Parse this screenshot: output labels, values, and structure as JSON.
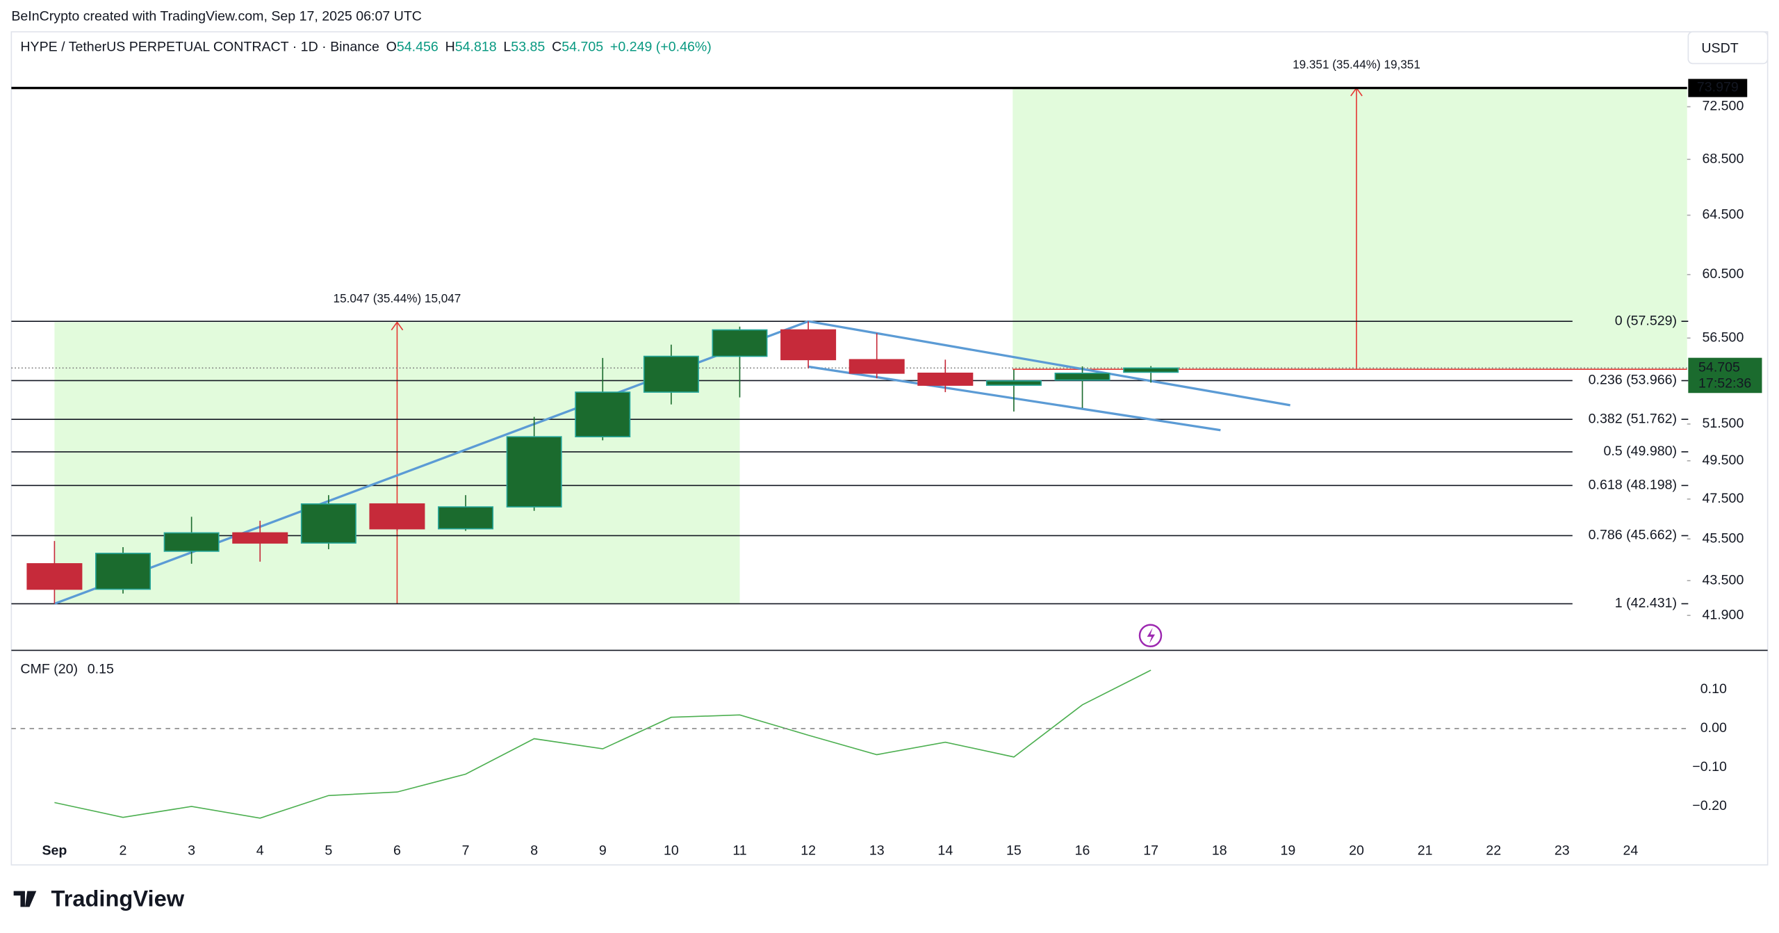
{
  "header": {
    "attribution": "BeInCrypto created with TradingView.com, Sep 17, 2025 06:07 UTC",
    "logo": "TradingView"
  },
  "chart_data": [
    {
      "type": "candlestick",
      "title": "HYPE / TetherUS PERPETUAL CONTRACT · 1D · Binance",
      "ohlc_prefixes": [
        "O",
        "H",
        "L",
        "C"
      ],
      "change": "+0.249 (+0.46%)",
      "currency": "USDT",
      "categories": [
        "Sep",
        "2",
        "3",
        "4",
        "5",
        "6",
        "7",
        "8",
        "9",
        "10",
        "11",
        "12",
        "13",
        "14",
        "15",
        "16",
        "17",
        "18",
        "19",
        "20",
        "21",
        "22",
        "23",
        "24"
      ],
      "candles": [
        {
          "open": 44.3,
          "high": 45.4,
          "low": 42.431,
          "close": 43.1
        },
        {
          "open": 43.1,
          "high": 45.1,
          "low": 42.9,
          "close": 44.8
        },
        {
          "open": 44.9,
          "high": 46.6,
          "low": 44.3,
          "close": 45.8
        },
        {
          "open": 45.8,
          "high": 46.4,
          "low": 44.4,
          "close": 45.3
        },
        {
          "open": 45.3,
          "high": 47.7,
          "low": 45.0,
          "close": 47.25
        },
        {
          "open": 47.25,
          "high": 47.3,
          "low": 45.9,
          "close": 46.0
        },
        {
          "open": 46.0,
          "high": 47.7,
          "low": 45.9,
          "close": 47.1
        },
        {
          "open": 47.1,
          "high": 51.9,
          "low": 46.9,
          "close": 50.8
        },
        {
          "open": 50.8,
          "high": 55.3,
          "low": 50.6,
          "close": 53.3
        },
        {
          "open": 53.3,
          "high": 56.1,
          "low": 52.6,
          "close": 55.4
        },
        {
          "open": 55.4,
          "high": 57.2,
          "low": 53.0,
          "close": 57.0
        },
        {
          "open": 57.0,
          "high": 57.529,
          "low": 54.7,
          "close": 55.2
        },
        {
          "open": 55.2,
          "high": 56.8,
          "low": 54.1,
          "close": 54.4
        },
        {
          "open": 54.4,
          "high": 55.2,
          "low": 53.3,
          "close": 53.7
        },
        {
          "open": 53.7,
          "high": 54.6,
          "low": 52.2,
          "close": 53.95
        },
        {
          "open": 54.0,
          "high": 54.8,
          "low": 52.4,
          "close": 54.4
        },
        {
          "open": 54.456,
          "high": 54.818,
          "low": 53.85,
          "close": 54.705
        }
      ],
      "up_color": "#1b6b2e",
      "down_color": "#c62a3a",
      "log_scale": true,
      "ylim": [
        40.4,
        78.6
      ],
      "yticks": [
        {
          "value": 41.9,
          "label": "41.900"
        },
        {
          "value": 43.5,
          "label": "43.500"
        },
        {
          "value": 45.5,
          "label": "45.500"
        },
        {
          "value": 47.5,
          "label": "47.500"
        },
        {
          "value": 49.5,
          "label": "49.500"
        },
        {
          "value": 51.5,
          "label": "51.500"
        },
        {
          "value": 56.5,
          "label": "56.500"
        },
        {
          "value": 60.5,
          "label": "60.500"
        },
        {
          "value": 64.5,
          "label": "64.500"
        },
        {
          "value": 68.5,
          "label": "68.500"
        },
        {
          "value": 72.5,
          "label": "72.500"
        }
      ],
      "fib_levels": [
        {
          "value": 57.529,
          "label": "0 (57.529)"
        },
        {
          "value": 53.966,
          "label": "0.236 (53.966)"
        },
        {
          "value": 51.762,
          "label": "0.382 (51.762)"
        },
        {
          "value": 49.98,
          "label": "0.5 (49.980)"
        },
        {
          "value": 48.198,
          "label": "0.618 (48.198)"
        },
        {
          "value": 45.662,
          "label": "0.786 (45.662)"
        },
        {
          "value": 42.431,
          "label": "1 (42.431)"
        }
      ],
      "measures": [
        {
          "label": "15.047 (35.44%) 15,047",
          "from": 42.431,
          "to": 57.478
        },
        {
          "label": "19.351 (35.44%) 19,351",
          "from": 54.628,
          "to": 73.979
        }
      ],
      "measure_color": "#e2fbdc",
      "countdown": "17:52:36"
    },
    {
      "type": "line",
      "title": "CMF (20)",
      "color": "#4caf50",
      "values": [
        -0.19,
        -0.228,
        -0.2,
        -0.23,
        -0.172,
        -0.163,
        -0.117,
        -0.026,
        -0.052,
        0.029,
        0.035,
        -0.017,
        -0.067,
        -0.035,
        -0.073,
        0.061,
        0.15
      ],
      "ylim": [
        -0.286,
        0.195
      ],
      "yticks": [
        {
          "value": -0.2,
          "label": "−0.20"
        },
        {
          "value": -0.1,
          "label": "−0.10"
        },
        {
          "value": 0,
          "label": "0.00"
        },
        {
          "value": 0.1,
          "label": "0.10"
        }
      ]
    }
  ]
}
